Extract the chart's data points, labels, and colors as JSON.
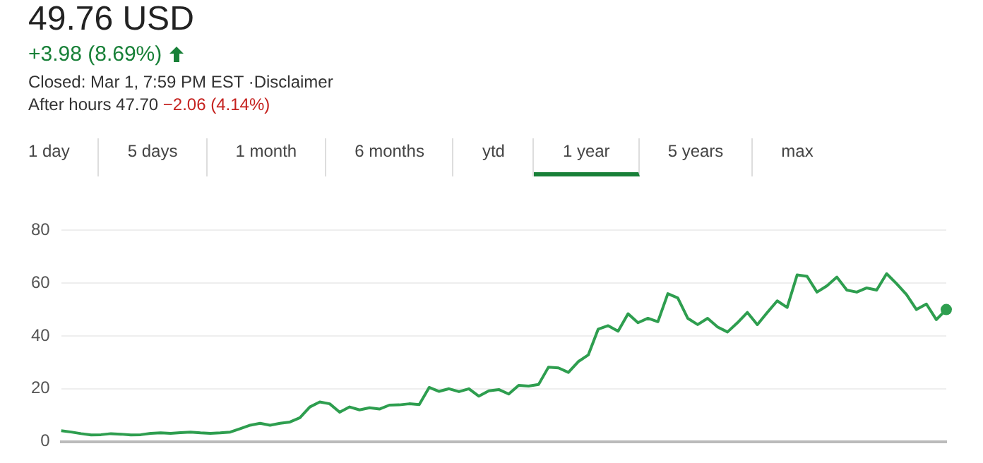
{
  "chart_data": {
    "type": "line",
    "title": "49.76 USD",
    "subtitle": "+3.98 (8.69%)",
    "annotations": [
      "Closed: Mar 1, 7:59 PM EST ·Disclaimer",
      "After hours 47.70",
      "−2.06 (4.14%)",
      "1 day",
      "5 days",
      "1 month",
      "6 months",
      "ytd",
      "1 year",
      "5 years",
      "max"
    ],
    "categories": [
      null,
      null,
      null,
      null,
      null,
      null,
      null,
      null,
      null,
      null,
      null,
      null,
      null,
      null,
      null,
      null,
      null,
      null,
      null,
      null,
      null,
      null,
      null,
      null,
      null,
      null,
      null,
      null,
      null,
      null,
      null,
      null,
      null,
      null,
      null,
      null,
      null,
      null,
      null,
      null,
      null,
      null,
      null,
      null,
      null,
      null,
      null,
      null,
      null,
      null,
      null,
      null,
      null,
      null,
      null,
      null,
      null,
      null,
      null,
      null,
      null,
      null,
      null,
      null,
      null,
      null,
      null,
      null,
      null,
      null,
      null,
      null,
      null,
      null,
      null,
      null,
      null,
      null,
      null,
      null,
      null,
      null,
      null,
      null,
      null,
      null,
      null,
      null,
      null,
      null
    ],
    "series": [
      {
        "color": "#2e9e4f",
        "values": [
          4.1,
          3.6,
          3.0,
          2.5,
          2.6,
          3.0,
          2.8,
          2.5,
          2.6,
          3.1,
          3.3,
          3.1,
          3.4,
          3.6,
          3.3,
          3.1,
          3.3,
          3.6,
          4.9,
          6.2,
          6.9,
          6.2,
          6.9,
          7.4,
          9,
          13.1,
          15,
          14.3,
          11.1,
          13.1,
          12,
          12.8,
          12.3,
          13.8,
          13.9,
          14.3,
          14.0,
          20.5,
          19,
          20,
          18.9,
          20,
          17.2,
          19.2,
          19.7,
          18,
          21.3,
          21,
          21.6,
          28.2,
          27.9,
          26.2,
          30.3,
          32.8,
          42.6,
          43.9,
          41.8,
          48.4,
          45,
          46.7,
          45.4,
          56,
          54.4,
          46.7,
          44.3,
          46.7,
          43.4,
          41.5,
          45,
          48.9,
          44.3,
          48.9,
          53.3,
          50.8,
          63.1,
          62.6,
          56.6,
          59,
          62.3,
          57.4,
          56.6,
          58.2,
          57.4,
          63.6,
          59.8,
          55.7,
          50,
          52.1,
          46.2,
          50
        ]
      }
    ],
    "ylim": [
      0,
      80
    ],
    "yticks": [
      0,
      20,
      40,
      60,
      80
    ],
    "grid": "y",
    "legend": false
  }
}
